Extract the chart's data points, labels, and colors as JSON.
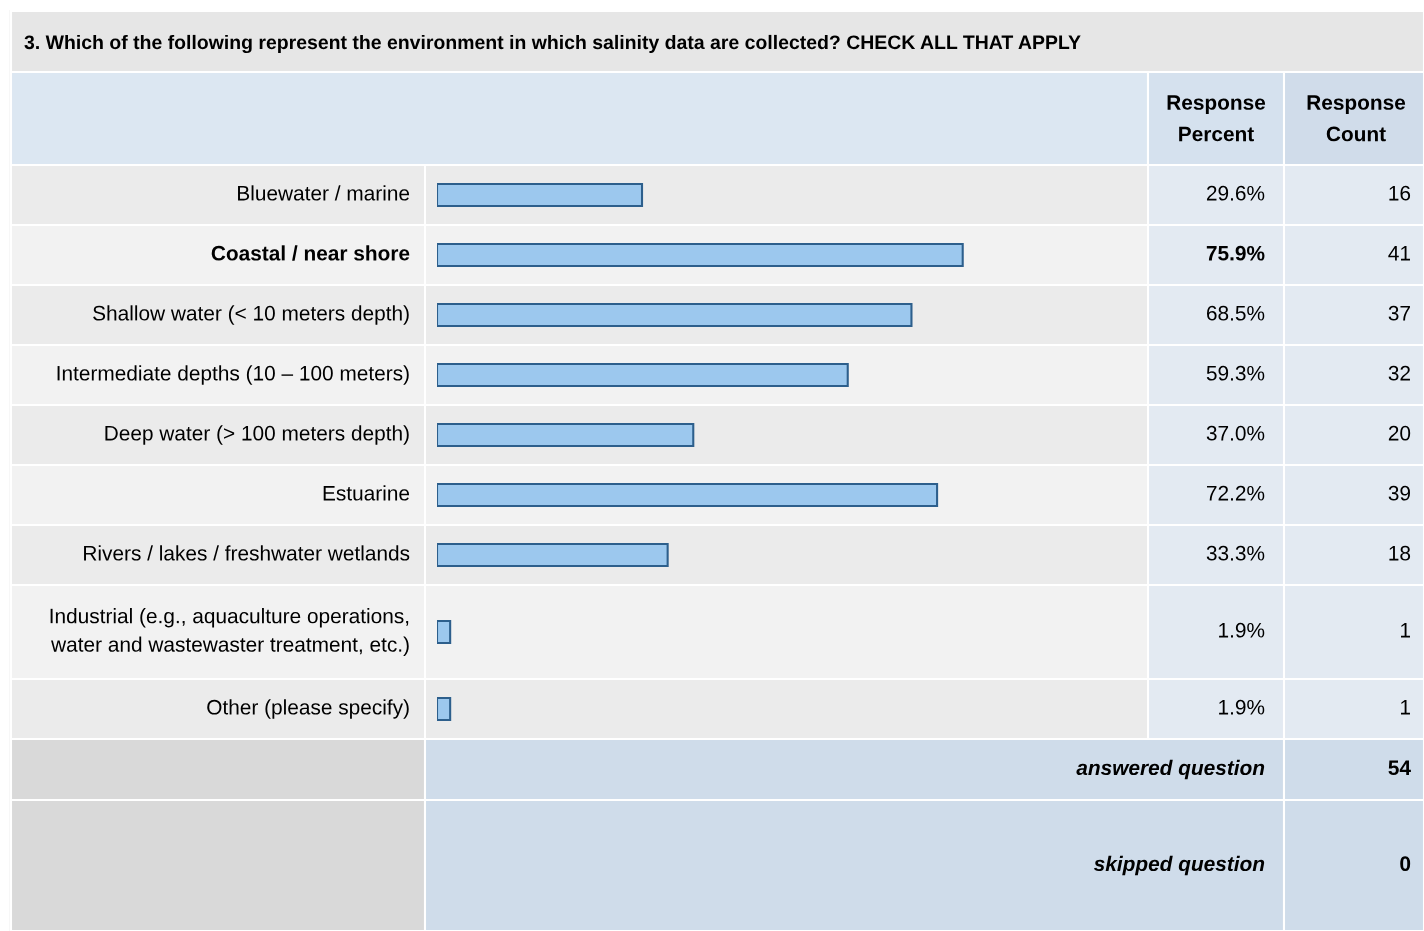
{
  "chart_data": {
    "type": "bar",
    "orientation": "horizontal",
    "title": "3. Which of the following represent the environment in which salinity data are collected? CHECK ALL THAT APPLY",
    "categories": [
      "Bluewater / marine",
      "Coastal / near shore",
      "Shallow water (< 10 meters depth)",
      "Intermediate depths (10 – 100 meters)",
      "Deep water (> 100 meters depth)",
      "Estuarine",
      "Rivers / lakes / freshwater wetlands",
      "Industrial (e.g., aquaculture operations, water and wastewaster treatment, etc.)",
      "Other (please specify)"
    ],
    "values": [
      29.6,
      75.9,
      68.5,
      59.3,
      37.0,
      72.2,
      33.3,
      1.9,
      1.9
    ],
    "value_labels": [
      "29.6%",
      "75.9%",
      "68.5%",
      "59.3%",
      "37.0%",
      "72.2%",
      "33.3%",
      "1.9%",
      "1.9%"
    ],
    "color": "#9cc8ee",
    "annotations": [
      "Response Percent",
      "Response Count",
      "16",
      "41",
      "37",
      "32",
      "20",
      "39",
      "18",
      "1",
      "1",
      "answered question",
      "54",
      "skipped question",
      "0"
    ]
  }
}
